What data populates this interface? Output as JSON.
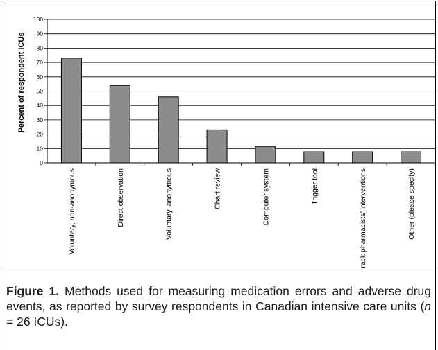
{
  "chart_data": {
    "type": "bar",
    "title": "",
    "xlabel": "",
    "ylabel": "Percent of respondent ICUs",
    "ylim": [
      0,
      100
    ],
    "yticks": [
      0,
      10,
      20,
      30,
      40,
      50,
      60,
      70,
      80,
      90,
      100
    ],
    "grid": true,
    "categories": [
      "Voluntary, non-anonymous",
      "Direct observation",
      "Voluntary, anonymous",
      "Chart review",
      "Computer system",
      "Trigger tool",
      "Track pharmacists’ interventions",
      "Other (please specify)"
    ],
    "values": [
      73,
      54,
      46,
      23,
      11.5,
      7.7,
      7.7,
      7.7
    ],
    "bar_color": "#8c8c8c"
  },
  "caption": {
    "label": "Figure 1.",
    "text_before_n": " Methods used for measuring medication errors and adverse drug events, as reported by survey respondents in Canadian intensive care units (",
    "n_symbol": "n",
    "text_after_n": " = 26 ICUs)."
  }
}
